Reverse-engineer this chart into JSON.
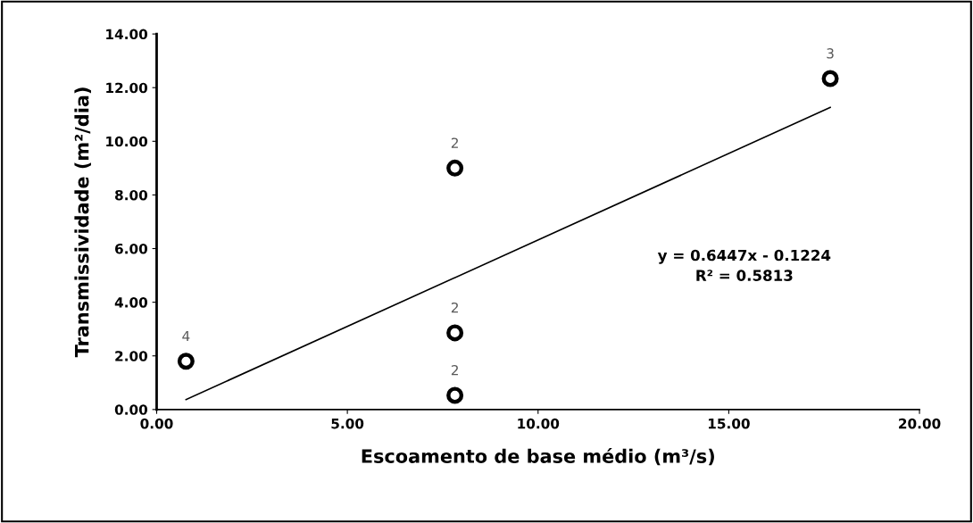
{
  "chart_data": {
    "type": "scatter",
    "xlabel": "Escoamento de base médio (m³/s)",
    "ylabel": "Transmissividade (m²/dia)",
    "xlim": [
      0,
      20
    ],
    "ylim": [
      0,
      14
    ],
    "xticks": [
      {
        "value": 0,
        "label": "0.00"
      },
      {
        "value": 5,
        "label": "5.00"
      },
      {
        "value": 10,
        "label": "10.00"
      },
      {
        "value": 15,
        "label": "15.00"
      },
      {
        "value": 20,
        "label": "20.00"
      }
    ],
    "yticks": [
      {
        "value": 0,
        "label": "0.00"
      },
      {
        "value": 2,
        "label": "2.00"
      },
      {
        "value": 4,
        "label": "4.00"
      },
      {
        "value": 6,
        "label": "6.00"
      },
      {
        "value": 8,
        "label": "8.00"
      },
      {
        "value": 10,
        "label": "10.00"
      },
      {
        "value": 12,
        "label": "12.00"
      },
      {
        "value": 14,
        "label": "14.00"
      }
    ],
    "grid": false,
    "legend": false,
    "series": [
      {
        "color": "#000000",
        "marker": "circle",
        "x": [
          0.77,
          7.82,
          7.82,
          7.82,
          17.66
        ],
        "values": [
          1.8,
          9.0,
          2.86,
          0.53,
          12.34
        ]
      },
      {
        "type": "line",
        "color": "#000000",
        "x": [
          0.77,
          17.66
        ],
        "values": [
          0.37,
          11.26
        ]
      }
    ],
    "annotations": [
      "y = 0.6447x - 0.1224\nR² = 0.5813",
      {
        "text": "4",
        "x": 0.77,
        "y": 1.8
      },
      {
        "text": "2",
        "x": 7.82,
        "y": 9.0
      },
      {
        "text": "2",
        "x": 7.82,
        "y": 2.86
      },
      {
        "text": "2",
        "x": 7.82,
        "y": 0.53
      },
      {
        "text": "3",
        "x": 17.66,
        "y": 12.34
      }
    ]
  }
}
